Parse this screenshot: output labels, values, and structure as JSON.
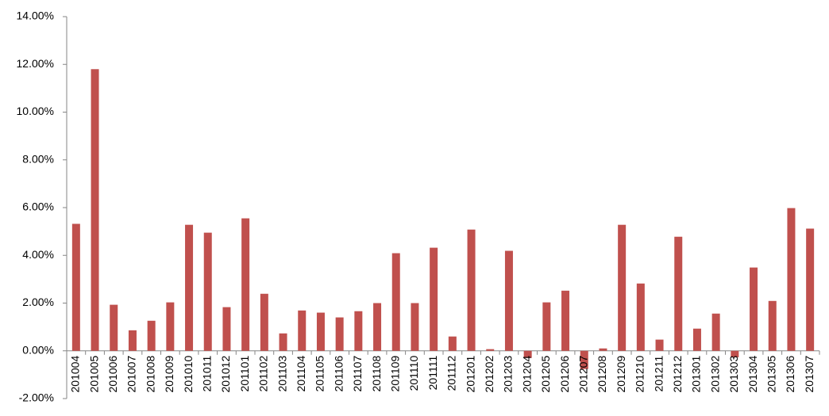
{
  "chart_data": {
    "type": "bar",
    "categories": [
      "201004",
      "201005",
      "201006",
      "201007",
      "201008",
      "201009",
      "201010",
      "201011",
      "201012",
      "201101",
      "201102",
      "201103",
      "201104",
      "201105",
      "201106",
      "201107",
      "201108",
      "201109",
      "201110",
      "201111",
      "201112",
      "201201",
      "201202",
      "201203",
      "201204",
      "201205",
      "201206",
      "201207",
      "201208",
      "201209",
      "201210",
      "201211",
      "201212",
      "201301",
      "201302",
      "201303",
      "201304",
      "201305",
      "201306",
      "201307"
    ],
    "values": [
      5.32,
      11.8,
      1.93,
      0.86,
      1.26,
      2.03,
      5.28,
      4.95,
      1.83,
      5.55,
      2.39,
      0.73,
      1.69,
      1.6,
      1.4,
      1.66,
      2.0,
      4.09,
      2.0,
      4.32,
      0.6,
      5.08,
      0.07,
      4.19,
      -0.3,
      2.03,
      2.52,
      -0.76,
      0.1,
      5.28,
      2.82,
      0.47,
      4.78,
      0.93,
      1.56,
      -0.27,
      3.49,
      2.09,
      5.98,
      5.12
    ],
    "color": "#c0504d",
    "ylim": [
      -2,
      14
    ],
    "yticks": [
      {
        "value": -2,
        "label": "-2.00%"
      },
      {
        "value": 0,
        "label": "0.00%"
      },
      {
        "value": 2,
        "label": "2.00%"
      },
      {
        "value": 4,
        "label": "4.00%"
      },
      {
        "value": 6,
        "label": "6.00%"
      },
      {
        "value": 8,
        "label": "8.00%"
      },
      {
        "value": 10,
        "label": "10.00%"
      },
      {
        "value": 12,
        "label": "12.00%"
      },
      {
        "value": 14,
        "label": "14.00%"
      }
    ],
    "grid": false
  }
}
